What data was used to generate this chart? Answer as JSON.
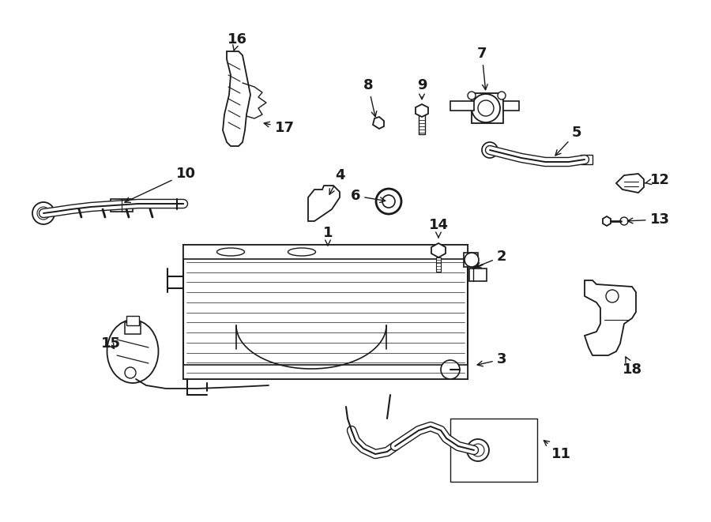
{
  "bg_color": "#ffffff",
  "line_color": "#1a1a1a",
  "fig_width": 9.0,
  "fig_height": 6.61,
  "dpi": 100,
  "label_fontsize": 13,
  "lw": 1.3
}
